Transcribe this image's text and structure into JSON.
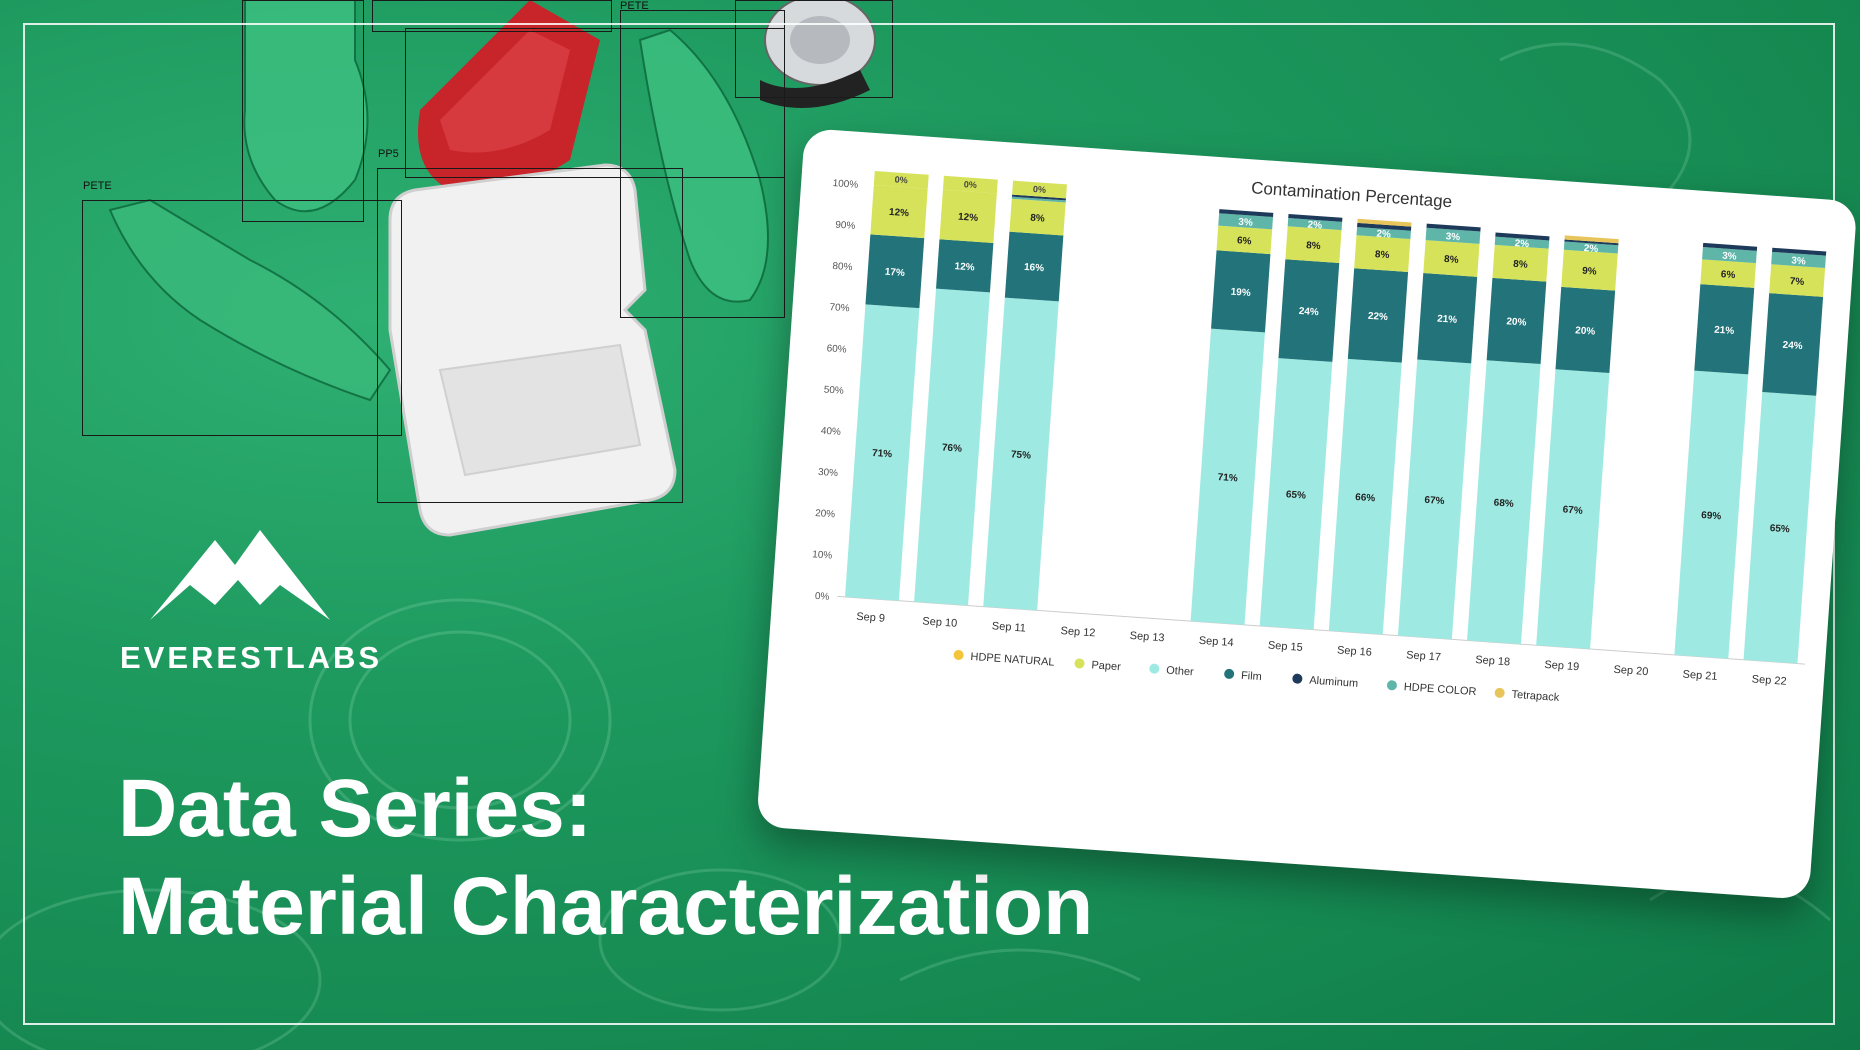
{
  "detection_labels": [
    "PETE",
    "PP5",
    "PETE"
  ],
  "brand": "EVERESTLABS",
  "title_line1": "Data Series:",
  "title_line2": "Material Characterization",
  "chart_data": {
    "type": "bar",
    "stacked": true,
    "title": "Contamination Percentage",
    "categories": [
      "Sep 9",
      "Sep 10",
      "Sep 11",
      "Sep 12",
      "Sep 13",
      "Sep 14",
      "Sep 15",
      "Sep 16",
      "Sep 17",
      "Sep 18",
      "Sep 19",
      "Sep 20",
      "Sep 21",
      "Sep 22"
    ],
    "y_ticks": [
      "100%",
      "90%",
      "80%",
      "70%",
      "60%",
      "50%",
      "40%",
      "30%",
      "20%",
      "10%",
      "0%"
    ],
    "ylim": [
      0,
      100
    ],
    "series": [
      {
        "name": "Other",
        "color": "#9eeae2",
        "values": [
          71,
          76,
          75,
          null,
          null,
          71,
          65,
          66,
          67,
          68,
          67,
          null,
          69,
          65
        ]
      },
      {
        "name": "Film",
        "color": "#23737a",
        "values": [
          17,
          12,
          16,
          null,
          null,
          19,
          24,
          22,
          21,
          20,
          20,
          null,
          21,
          24
        ]
      },
      {
        "name": "Paper",
        "color": "#d6e35a",
        "values": [
          12,
          12,
          8,
          null,
          null,
          6,
          8,
          8,
          8,
          8,
          9,
          null,
          6,
          7
        ]
      },
      {
        "name": "HDPE COLOR",
        "color": "#5fb5a8",
        "values": [
          0,
          0,
          0.5,
          null,
          null,
          3,
          2,
          2,
          3,
          2,
          2,
          null,
          3,
          3
        ]
      },
      {
        "name": "Aluminum",
        "color": "#1e3a5a",
        "values": [
          0,
          0,
          0.5,
          null,
          null,
          1,
          1,
          1,
          1,
          1,
          0.5,
          null,
          1,
          1
        ]
      },
      {
        "name": "Tetrapack",
        "color": "#e8c55a",
        "values": [
          0,
          0,
          0,
          null,
          null,
          0,
          0,
          1,
          0,
          0,
          1,
          null,
          0,
          0
        ]
      },
      {
        "name": "HDPE NATURAL",
        "color": "#f3c53b",
        "values": [
          0,
          0,
          0,
          null,
          null,
          0,
          0,
          0,
          0,
          0,
          0,
          null,
          0,
          0
        ]
      }
    ],
    "data_labels": [
      {
        "cat": 0,
        "labels": {
          "Other": "71%",
          "Film": "17%",
          "Paper": "12%",
          "HDPE COLOR": "0%"
        }
      },
      {
        "cat": 1,
        "labels": {
          "Other": "76%",
          "Film": "12%",
          "Paper": "12%",
          "HDPE COLOR": "0%"
        }
      },
      {
        "cat": 2,
        "labels": {
          "Other": "75%",
          "Film": "16%",
          "Paper": "8%",
          "HDPE COLOR": "0%"
        }
      },
      {
        "cat": 5,
        "labels": {
          "Other": "71%",
          "Film": "19%",
          "Paper": "6%",
          "HDPE COLOR": "3%"
        }
      },
      {
        "cat": 6,
        "labels": {
          "Other": "65%",
          "Film": "24%",
          "Paper": "8%",
          "HDPE COLOR": "2%"
        }
      },
      {
        "cat": 7,
        "labels": {
          "Other": "66%",
          "Film": "22%",
          "Paper": "8%",
          "HDPE COLOR": "2%"
        }
      },
      {
        "cat": 8,
        "labels": {
          "Other": "67%",
          "Film": "21%",
          "Paper": "8%",
          "HDPE COLOR": "3%"
        }
      },
      {
        "cat": 9,
        "labels": {
          "Other": "68%",
          "Film": "20%",
          "Paper": "8%",
          "HDPE COLOR": "2%"
        }
      },
      {
        "cat": 10,
        "labels": {
          "Other": "67%",
          "Film": "20%",
          "Paper": "9%",
          "HDPE COLOR": "2%"
        }
      },
      {
        "cat": 12,
        "labels": {
          "Other": "69%",
          "Film": "21%",
          "Paper": "6%",
          "HDPE COLOR": "3%"
        }
      },
      {
        "cat": 13,
        "labels": {
          "Other": "65%",
          "Film": "24%",
          "Paper": "7%",
          "HDPE COLOR": "3%"
        }
      }
    ],
    "legend_order": [
      "HDPE NATURAL",
      "Paper",
      "Other",
      "Film",
      "Aluminum",
      "HDPE COLOR",
      "Tetrapack"
    ],
    "legend_position": "bottom",
    "grid": false
  }
}
